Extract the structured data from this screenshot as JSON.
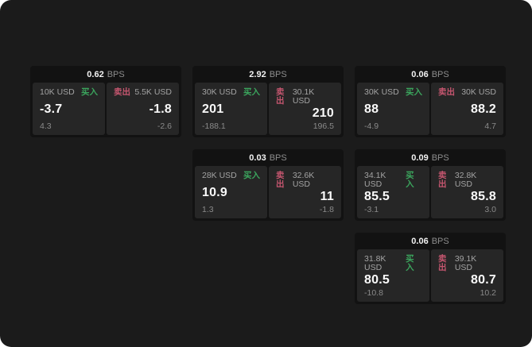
{
  "theme": {
    "page_bg": "#1b1b1b",
    "card_bg": "#121212",
    "panel_bg": "#262626",
    "buy_color": "#3ba55d",
    "sell_color": "#c5566f"
  },
  "labels": {
    "bps_unit": "BPS",
    "buy": "买入",
    "sell": "卖出"
  },
  "cards": [
    {
      "bps": "0.62",
      "buy": {
        "amount": "10K USD",
        "value": "-3.7",
        "sub": "4.3"
      },
      "sell": {
        "amount": "5.5K USD",
        "value": "-1.8",
        "sub": "-2.6"
      }
    },
    {
      "bps": "2.92",
      "buy": {
        "amount": "30K USD",
        "value": "201",
        "sub": "-188.1"
      },
      "sell": {
        "amount": "30.1K USD",
        "value": "210",
        "sub": "196.5"
      }
    },
    {
      "bps": "0.06",
      "buy": {
        "amount": "30K USD",
        "value": "88",
        "sub": "-4.9"
      },
      "sell": {
        "amount": "30K USD",
        "value": "88.2",
        "sub": "4.7"
      }
    },
    {
      "bps": "0.03",
      "buy": {
        "amount": "28K USD",
        "value": "10.9",
        "sub": "1.3"
      },
      "sell": {
        "amount": "32.6K USD",
        "value": "11",
        "sub": "-1.8"
      }
    },
    {
      "bps": "0.09",
      "buy": {
        "amount": "34.1K USD",
        "value": "85.5",
        "sub": "-3.1"
      },
      "sell": {
        "amount": "32.8K USD",
        "value": "85.8",
        "sub": "3.0"
      }
    },
    {
      "bps": "0.06",
      "buy": {
        "amount": "31.8K USD",
        "value": "80.5",
        "sub": "-10.8"
      },
      "sell": {
        "amount": "39.1K USD",
        "value": "80.7",
        "sub": "10.2"
      }
    }
  ]
}
